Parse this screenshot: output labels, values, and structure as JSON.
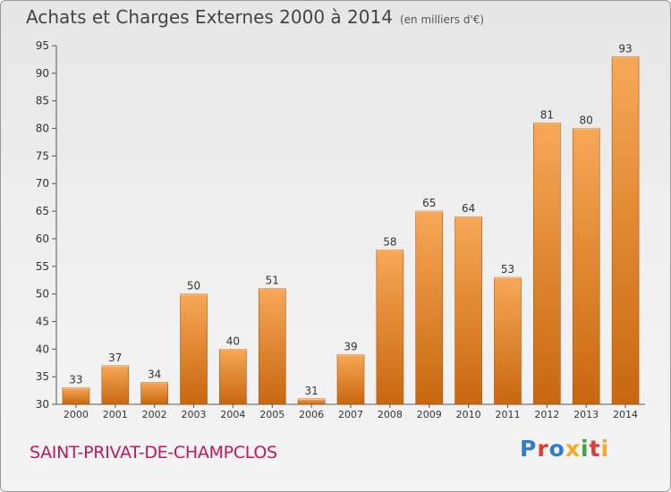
{
  "header": {
    "title": "Achats et Charges Externes 2000 à 2014",
    "unit": "(en milliers d'€)"
  },
  "footer": {
    "commune": "SAINT-PRIVAT-DE-CHAMPCLOS",
    "brand": "Proxiti",
    "brand_colors": [
      "#2e7dd1",
      "#e53935",
      "#2e7dd1",
      "#f9a825",
      "#43a047",
      "#e53935",
      "#f9a825"
    ]
  },
  "colors": {
    "bar_top": "#f7a857",
    "bar_bottom": "#c8670f",
    "bar_edge": "#a8560f"
  },
  "chart_data": {
    "type": "bar",
    "title": "Achats et Charges Externes 2000 à 2014",
    "subtitle": "(en milliers d'€)",
    "categories": [
      "2000",
      "2001",
      "2002",
      "2003",
      "2004",
      "2005",
      "2006",
      "2007",
      "2008",
      "2009",
      "2010",
      "2011",
      "2012",
      "2013",
      "2014"
    ],
    "values": [
      33,
      37,
      34,
      50,
      40,
      51,
      31,
      39,
      58,
      65,
      64,
      53,
      81,
      80,
      93
    ],
    "ylim": [
      30,
      95
    ],
    "yticks": [
      30,
      35,
      40,
      45,
      50,
      55,
      60,
      65,
      70,
      75,
      80,
      85,
      90,
      95
    ],
    "grid": false,
    "data_labels": true
  }
}
